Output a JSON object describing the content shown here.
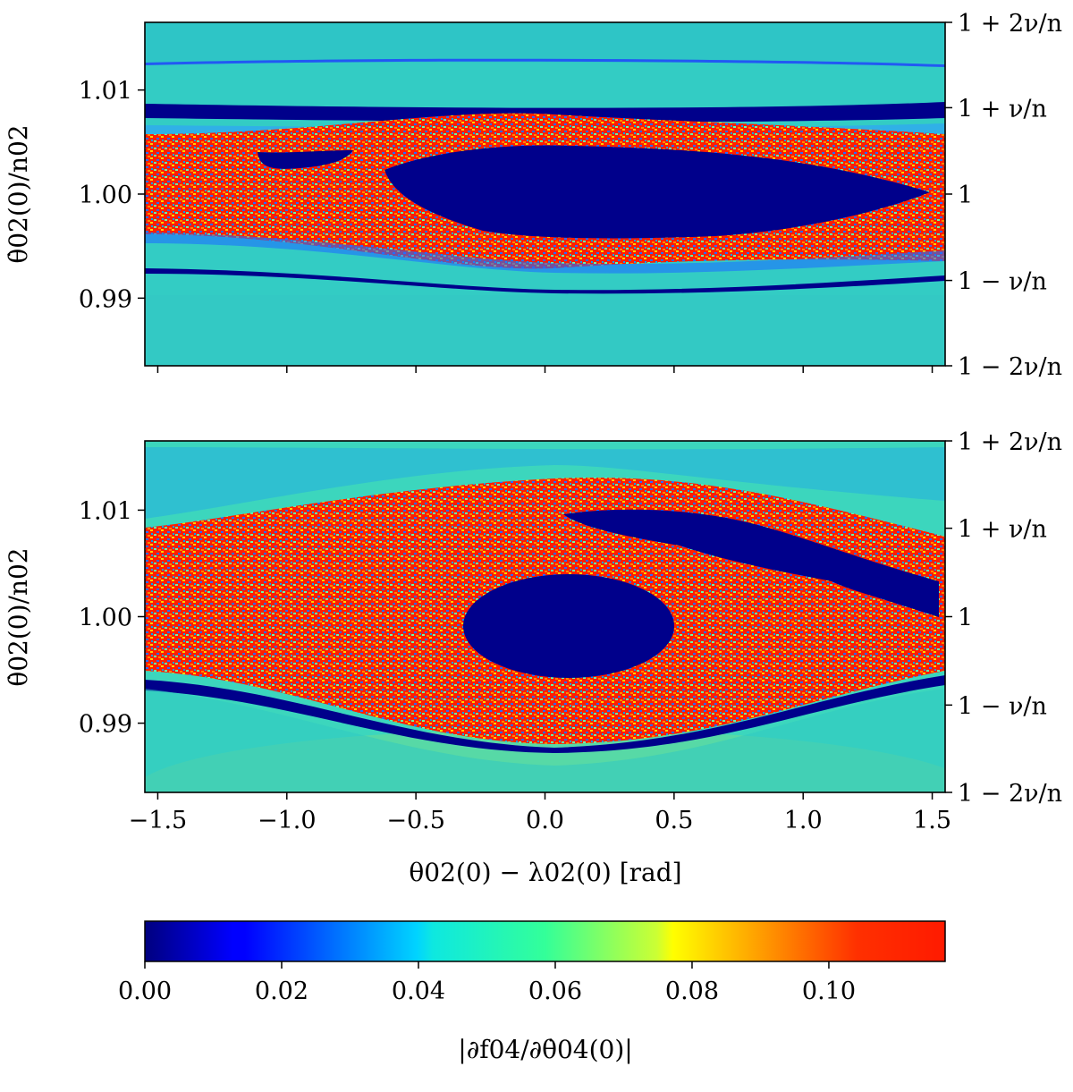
{
  "chart_data": [
    {
      "type": "heatmap",
      "panel": "top",
      "ylabel": "θ̇02(0)/n02",
      "xlim": [
        -1.55,
        1.55
      ],
      "ylim": [
        0.9835,
        1.0165
      ],
      "y_ticks": [
        0.99,
        1.0,
        1.01
      ],
      "y_tick_labels": [
        "0.99",
        "1.00",
        "1.01"
      ],
      "x_ticks": [
        -1.5,
        -1.0,
        -0.5,
        0.0,
        0.5,
        1.0,
        1.5
      ],
      "x_tick_labels_shown": false,
      "right_ticks": [
        {
          "value": 1.0165,
          "label": "1 + 2ν/n"
        },
        {
          "value": 1.0083,
          "label": "1 + ν/n"
        },
        {
          "value": 1.0,
          "label": "1"
        },
        {
          "value": 0.9917,
          "label": "1 − ν/n"
        },
        {
          "value": 0.9835,
          "label": "1 − 2ν/n"
        }
      ],
      "regions": [
        {
          "kind": "chaotic",
          "value": 0.11,
          "description": "red speckled chaotic band around the resonance"
        },
        {
          "kind": "stable",
          "value": 0.0,
          "center_x": 0.3,
          "center_y": 1.0,
          "half_width_x": 0.85,
          "half_height_y": 0.0045
        },
        {
          "kind": "stable",
          "value": 0.0,
          "center_x": -0.95,
          "center_y": 1.0037,
          "half_width_x": 0.25,
          "half_height_y": 0.0008
        },
        {
          "kind": "stable_line",
          "value": 0.0,
          "y": 1.009
        },
        {
          "kind": "stable_line",
          "value": 0.0,
          "y": 0.991
        },
        {
          "kind": "stable_line",
          "value": 0.0,
          "y": 1.0132
        },
        {
          "kind": "background",
          "value": 0.045
        }
      ]
    },
    {
      "type": "heatmap",
      "panel": "bottom",
      "xlabel": "θ02(0) − λ02(0) [rad]",
      "ylabel": "θ̇02(0)/n02",
      "xlim": [
        -1.55,
        1.55
      ],
      "ylim": [
        0.9835,
        1.0165
      ],
      "x_ticks": [
        -1.5,
        -1.0,
        -0.5,
        0.0,
        0.5,
        1.0,
        1.5
      ],
      "x_tick_labels": [
        "−1.5",
        "−1.0",
        "−0.5",
        "0.0",
        "0.5",
        "1.0",
        "1.5"
      ],
      "y_ticks": [
        0.99,
        1.0,
        1.01
      ],
      "y_tick_labels": [
        "0.99",
        "1.00",
        "1.01"
      ],
      "right_ticks": [
        {
          "value": 1.0165,
          "label": "1 + 2ν/n"
        },
        {
          "value": 1.0083,
          "label": "1 + ν/n"
        },
        {
          "value": 1.0,
          "label": "1"
        },
        {
          "value": 0.9917,
          "label": "1 − ν/n"
        },
        {
          "value": 0.9835,
          "label": "1 − 2ν/n"
        }
      ],
      "regions": [
        {
          "kind": "chaotic",
          "value": 0.11,
          "description": "red speckled chaotic band filling the resonance"
        },
        {
          "kind": "stable",
          "value": 0.0,
          "center_x": 0.22,
          "center_y": 0.9995,
          "half_width_x": 0.4,
          "half_height_y": 0.0047
        },
        {
          "kind": "stable",
          "value": 0.0,
          "description": "elongated island upper right",
          "x_range": [
            0.15,
            1.55
          ],
          "y_range": [
            1.003,
            1.011
          ]
        },
        {
          "kind": "stable_line",
          "value": 0.0,
          "description": "separatrix along lower edge"
        },
        {
          "kind": "background",
          "value": 0.045
        }
      ]
    }
  ],
  "colorbar": {
    "colormap": "jet",
    "range": [
      0.0,
      0.117
    ],
    "ticks": [
      0.0,
      0.02,
      0.04,
      0.06,
      0.08,
      0.1
    ],
    "tick_labels": [
      "0.00",
      "0.02",
      "0.04",
      "0.06",
      "0.08",
      "0.10"
    ],
    "label": "|∂f04/∂θ̇04(0)|"
  },
  "colors": {
    "stable": "#00008b",
    "chaotic": "#ff2200",
    "background": "#33ccc4",
    "frame": "#000000"
  }
}
